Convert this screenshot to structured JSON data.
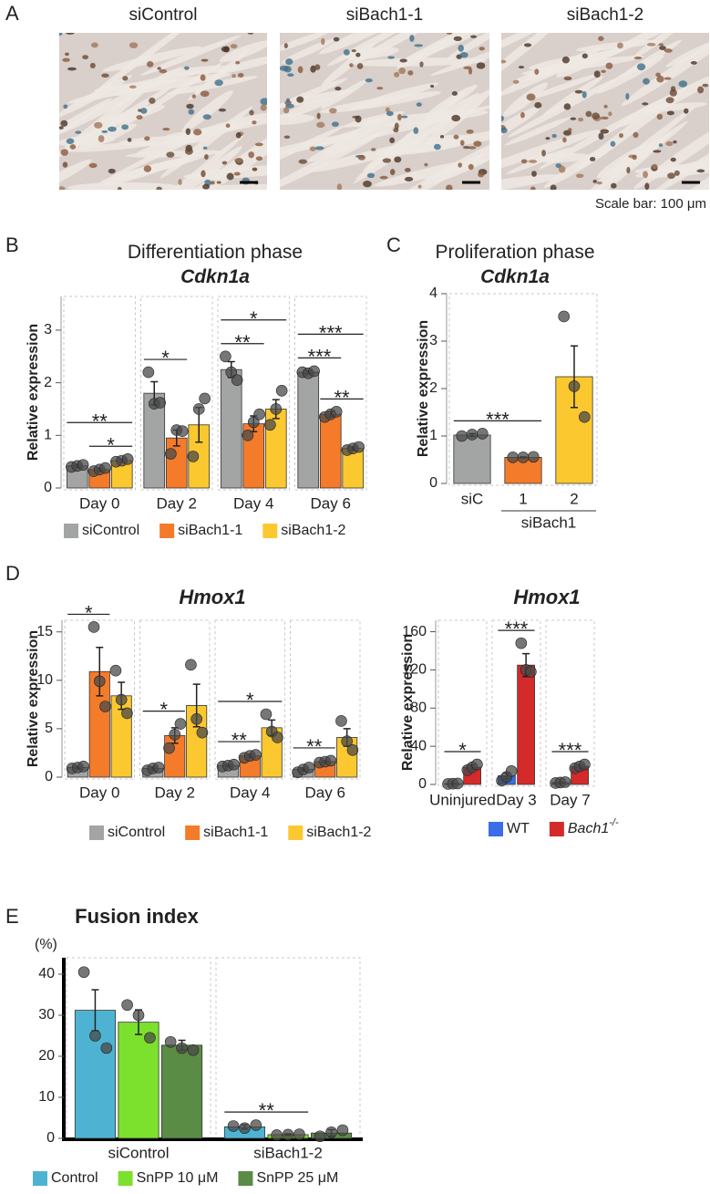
{
  "panel_labels": [
    "A",
    "B",
    "C",
    "D",
    "E"
  ],
  "micrographs": {
    "labels": [
      "siControl",
      "siBach1-1",
      "siBach1-2"
    ],
    "scale_bar": "Scale bar: 100 μm"
  },
  "chart_data": [
    {
      "type": "bar",
      "title": "Differentiation phase",
      "subtitle": "Cdkn1a",
      "ylabel": "Relative expression",
      "categories": [
        "Day 0",
        "Day 2",
        "Day 4",
        "Day 6"
      ],
      "facets": true,
      "ylim": [
        0,
        3.64
      ],
      "yticks": [
        0,
        1,
        2,
        3
      ],
      "legend": "bottom",
      "series": [
        {
          "name": "siControl",
          "color": "#a3a5a4",
          "values": [
            0.42,
            1.8,
            2.25,
            2.2
          ],
          "errors": [
            0.03,
            0.22,
            0.15,
            0.03
          ],
          "points": [
            [
              0.4,
              0.42,
              0.44
            ],
            [
              2.2,
              1.6,
              1.62
            ],
            [
              2.5,
              2.2,
              2.05
            ],
            [
              2.2,
              2.18,
              2.22
            ]
          ]
        },
        {
          "name": "siBach1-1",
          "color": "#f47b2a",
          "values": [
            0.35,
            0.95,
            1.22,
            1.4
          ],
          "errors": [
            0.03,
            0.15,
            0.15,
            0.05
          ],
          "points": [
            [
              0.32,
              0.35,
              0.38
            ],
            [
              0.65,
              1.1,
              1.08
            ],
            [
              1.0,
              1.25,
              1.4
            ],
            [
              1.35,
              1.4,
              1.45
            ]
          ]
        },
        {
          "name": "siBach1-2",
          "color": "#fbc82f",
          "values": [
            0.52,
            1.2,
            1.5,
            0.75
          ],
          "errors": [
            0.03,
            0.33,
            0.18,
            0.03
          ],
          "points": [
            [
              0.5,
              0.52,
              0.55
            ],
            [
              0.6,
              1.5,
              1.7
            ],
            [
              1.2,
              1.5,
              1.85
            ],
            [
              0.72,
              0.75,
              0.78
            ]
          ]
        }
      ],
      "annotations": [
        {
          "label": "*",
          "category": 0,
          "pair": [
            1,
            2
          ]
        },
        {
          "label": "**",
          "category": 0,
          "pair": [
            0,
            2
          ]
        },
        {
          "label": "*",
          "category": 1,
          "pair": [
            0,
            1
          ]
        },
        {
          "label": "**",
          "category": 2,
          "pair": [
            0,
            1
          ]
        },
        {
          "label": "*",
          "category": 2,
          "pair": [
            0,
            2
          ]
        },
        {
          "label": "**",
          "category": 3,
          "pair": [
            1,
            2
          ]
        },
        {
          "label": "***",
          "category": 3,
          "pair": [
            0,
            1
          ]
        },
        {
          "label": "***",
          "category": 3,
          "pair": [
            0,
            2
          ]
        }
      ]
    },
    {
      "type": "bar",
      "title": "Proliferation phase",
      "subtitle": "Cdkn1a",
      "ylabel": "Relative expression",
      "categories": [
        "siC",
        "1",
        "2"
      ],
      "facets": false,
      "group": {
        "label": "siBach1",
        "categories": [
          1,
          2
        ]
      },
      "ylim": [
        0,
        4
      ],
      "yticks": [
        0,
        1,
        2,
        3,
        4
      ],
      "series": [
        {
          "colors": [
            "#a3a5a4",
            "#f47b2a",
            "#fbc82f"
          ],
          "values": [
            1.02,
            0.55,
            2.25
          ],
          "errors": [
            0.03,
            0.01,
            0.65
          ],
          "points": [
            [
              1.0,
              1.03,
              1.05
            ],
            [
              0.55,
              0.55,
              0.56
            ],
            [
              3.52,
              2.05,
              1.4
            ]
          ]
        }
      ],
      "annotations": [
        {
          "label": "***",
          "pair": [
            0,
            1
          ]
        }
      ]
    },
    {
      "type": "bar",
      "title": "Hmox1",
      "ylabel": "Relative expression",
      "categories": [
        "Day 0",
        "Day 2",
        "Day 4",
        "Day 6"
      ],
      "facets": true,
      "ylim": [
        0,
        16.2
      ],
      "yticks": [
        0,
        5,
        10,
        15
      ],
      "legend": "bottom",
      "series": [
        {
          "name": "siControl",
          "color": "#a3a5a4",
          "values": [
            1.0,
            0.9,
            1.2,
            0.8
          ],
          "errors": [
            0.1,
            0.15,
            0.1,
            0.15
          ],
          "points": [
            [
              0.9,
              1.0,
              1.1
            ],
            [
              0.7,
              0.9,
              1.0
            ],
            [
              1.1,
              1.2,
              1.3
            ],
            [
              0.5,
              0.8,
              1.0
            ]
          ]
        },
        {
          "name": "siBach1-1",
          "color": "#f47b2a",
          "values": [
            10.9,
            4.3,
            2.2,
            1.6
          ],
          "errors": [
            2.5,
            0.8,
            0.15,
            0.1
          ],
          "points": [
            [
              15.5,
              9.9,
              7.3
            ],
            [
              3.0,
              4.4,
              5.5
            ],
            [
              2.0,
              2.2,
              2.3
            ],
            [
              1.5,
              1.6,
              1.7
            ]
          ]
        },
        {
          "name": "siBach1-2",
          "color": "#fbc82f",
          "values": [
            8.4,
            7.4,
            5.1,
            4.1
          ],
          "errors": [
            1.4,
            2.2,
            0.8,
            0.9
          ],
          "points": [
            [
              11.0,
              8.0,
              6.6
            ],
            [
              11.6,
              6.0,
              4.6
            ],
            [
              6.5,
              4.7,
              4.1
            ],
            [
              5.8,
              3.7,
              2.8
            ]
          ]
        }
      ],
      "annotations": [
        {
          "label": "*",
          "category": 0,
          "pair": [
            0,
            1
          ]
        },
        {
          "label": "*",
          "category": 1,
          "pair": [
            0,
            1
          ]
        },
        {
          "label": "**",
          "category": 2,
          "pair": [
            0,
            1
          ]
        },
        {
          "label": "*",
          "category": 2,
          "pair": [
            0,
            2
          ]
        },
        {
          "label": "**",
          "category": 3,
          "pair": [
            0,
            1
          ]
        }
      ]
    },
    {
      "type": "bar",
      "title": "Hmox1",
      "ylabel": "Relative expression",
      "categories": [
        "Uninjured",
        "Day 3",
        "Day 7"
      ],
      "facets": true,
      "ylim": [
        0,
        172
      ],
      "yticks": [
        0,
        40,
        80,
        120,
        160
      ],
      "legend": "bottom",
      "series": [
        {
          "name": "WT",
          "color": "#3a6ee8",
          "values": [
            0.8,
            9,
            2
          ],
          "errors": [
            0.2,
            3,
            0.3
          ],
          "points": [
            [
              0.5,
              0.8,
              1.0
            ],
            [
              4,
              8,
              14
            ],
            [
              1.5,
              2,
              2.5
            ]
          ]
        },
        {
          "name": "Bach1",
          "name_superscript": "-/-",
          "color": "#d42a2a",
          "values": [
            18,
            125,
            19
          ],
          "errors": [
            2.5,
            12,
            1.5
          ],
          "points": [
            [
              15,
              18,
              21
            ],
            [
              148,
              120,
              118
            ],
            [
              17,
              19,
              21
            ]
          ]
        }
      ],
      "annotations": [
        {
          "label": "*",
          "category": 0,
          "pair": [
            0,
            1
          ]
        },
        {
          "label": "***",
          "category": 1,
          "pair": [
            0,
            1
          ]
        },
        {
          "label": "***",
          "category": 2,
          "pair": [
            0,
            1
          ]
        }
      ]
    },
    {
      "type": "bar",
      "title": "Fusion index",
      "yunit": "(%)",
      "categories": [
        "siControl",
        "siBach1-2"
      ],
      "facets": true,
      "ylim": [
        0,
        44
      ],
      "yticks": [
        0,
        10,
        20,
        30,
        40
      ],
      "legend": "bottom",
      "series": [
        {
          "name": "Control",
          "color": "#4eb3d3",
          "values": [
            31.2,
            2.8
          ],
          "errors": [
            5,
            0.5
          ],
          "points": [
            [
              40.5,
              25,
              22
            ],
            [
              3.0,
              2.5,
              3.2
            ]
          ]
        },
        {
          "name": "SnPP 10 μM",
          "color": "#7ce12c",
          "values": [
            28.3,
            0.9
          ],
          "errors": [
            3,
            0.2
          ],
          "points": [
            [
              32.5,
              30,
              24.5
            ],
            [
              0.8,
              0.9,
              1.0
            ]
          ]
        },
        {
          "name": "SnPP 25 μM",
          "color": "#5b8c45",
          "values": [
            22.7,
            1.3
          ],
          "errors": [
            1.2,
            0.8
          ],
          "points": [
            [
              23.5,
              22,
              21.5
            ],
            [
              0.5,
              1.5,
              2.0
            ]
          ]
        }
      ],
      "annotations": [
        {
          "label": "**",
          "category": 1,
          "pair": [
            0,
            1
          ]
        }
      ]
    }
  ]
}
